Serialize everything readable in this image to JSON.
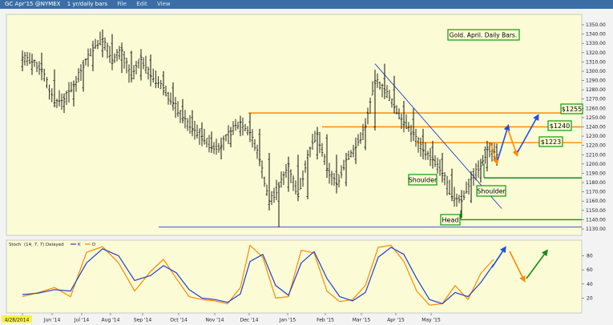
{
  "toolbar": {
    "symbol": "GC Apr'15 @NYMEX",
    "period": "1 yr/daily bars",
    "menu": [
      "File",
      "Edit",
      "View"
    ]
  },
  "stoch_panel": {
    "title": "Stoch",
    "params": "(14, 7, 7) Delayed",
    "legend": [
      "K",
      "D"
    ]
  },
  "chart_data": [
    {
      "type": "bar",
      "title": "Gold. April. Daily Bars.",
      "xlabel": "",
      "ylabel": "",
      "x_ticks": [
        "4/28/2014",
        "Jun '14",
        "Jul '14",
        "Aug '14",
        "Sep '14",
        "Oct '14",
        "Nov '14",
        "Dec '14",
        "Jan '15",
        "Feb '15",
        "Mar '15",
        "Apr '15",
        "May '15"
      ],
      "y_ticks": [
        1130,
        1140,
        1150,
        1160,
        1170,
        1180,
        1190,
        1200,
        1210,
        1220,
        1230,
        1240,
        1250,
        1260,
        1270,
        1280,
        1290,
        1300,
        1310,
        1320,
        1330,
        1340,
        1350
      ],
      "ylim": [
        1125,
        1360
      ],
      "grid": false,
      "series": [
        {
          "values": [
            [
              0,
              1305,
              1320,
              1300,
              1315
            ],
            [
              6,
              1302,
              1318,
              1296,
              1310
            ],
            [
              12,
              1308,
              1320,
              1298,
              1302
            ],
            [
              20,
              1290,
              1302,
              1262,
              1266
            ],
            [
              26,
              1262,
              1276,
              1255,
              1270
            ],
            [
              32,
              1270,
              1290,
              1262,
              1284
            ],
            [
              38,
              1282,
              1312,
              1278,
              1306
            ],
            [
              44,
              1306,
              1330,
              1300,
              1325
            ],
            [
              50,
              1322,
              1345,
              1315,
              1335
            ],
            [
              56,
              1330,
              1340,
              1308,
              1312
            ],
            [
              62,
              1312,
              1328,
              1298,
              1322
            ],
            [
              68,
              1320,
              1322,
              1288,
              1292
            ],
            [
              74,
              1295,
              1320,
              1290,
              1315
            ],
            [
              80,
              1312,
              1318,
              1290,
              1295
            ],
            [
              88,
              1295,
              1300,
              1275,
              1282
            ],
            [
              94,
              1282,
              1288,
              1260,
              1265
            ],
            [
              100,
              1262,
              1270,
              1245,
              1250
            ],
            [
              106,
              1250,
              1258,
              1232,
              1238
            ],
            [
              112,
              1238,
              1245,
              1225,
              1230
            ],
            [
              118,
              1228,
              1235,
              1212,
              1218
            ],
            [
              124,
              1218,
              1226,
              1205,
              1220
            ],
            [
              130,
              1222,
              1240,
              1218,
              1235
            ],
            [
              136,
              1235,
              1252,
              1230,
              1245
            ],
            [
              142,
              1245,
              1255,
              1230,
              1234
            ],
            [
              148,
              1232,
              1238,
              1200,
              1205
            ],
            [
              154,
              1205,
              1212,
              1150,
              1160
            ],
            [
              160,
              1160,
              1180,
              1132,
              1175
            ],
            [
              166,
              1175,
              1208,
              1170,
              1200
            ],
            [
              172,
              1198,
              1210,
              1160,
              1165
            ],
            [
              178,
              1165,
              1215,
              1162,
              1210
            ],
            [
              184,
              1210,
              1240,
              1205,
              1232
            ],
            [
              190,
              1228,
              1232,
              1185,
              1195
            ],
            [
              196,
              1192,
              1210,
              1170,
              1178
            ],
            [
              202,
              1180,
              1212,
              1176,
              1205
            ],
            [
              208,
              1205,
              1225,
              1200,
              1218
            ],
            [
              214,
              1218,
              1245,
              1215,
              1240
            ],
            [
              220,
              1240,
              1300,
              1236,
              1290
            ],
            [
              226,
              1292,
              1308,
              1270,
              1280
            ],
            [
              232,
              1280,
              1295,
              1255,
              1262
            ],
            [
              238,
              1262,
              1268,
              1240,
              1245
            ],
            [
              244,
              1248,
              1260,
              1225,
              1232
            ],
            [
              250,
              1230,
              1238,
              1205,
              1215
            ],
            [
              256,
              1218,
              1225,
              1195,
              1205
            ],
            [
              262,
              1205,
              1212,
              1180,
              1190
            ],
            [
              268,
              1188,
              1195,
              1160,
              1165
            ],
            [
              274,
              1165,
              1172,
              1142,
              1160
            ],
            [
              280,
              1160,
              1188,
              1158,
              1185
            ],
            [
              286,
              1185,
              1205,
              1180,
              1198
            ],
            [
              290,
              1196,
              1225,
              1192,
              1218
            ],
            [
              296,
              1218,
              1222,
              1198,
              1210
            ]
          ]
        }
      ],
      "annotations": {
        "price_labels": [
          "$1255",
          "$1240",
          "$1223"
        ],
        "pattern_labels": [
          "Shoulder",
          "Head",
          "Shoulder"
        ],
        "levels": [
          1255,
          1240,
          1223,
          1185,
          1140,
          1132
        ]
      }
    },
    {
      "type": "line",
      "title": "",
      "xlabel": "",
      "ylabel": "",
      "y_ticks": [
        20,
        40,
        60,
        80
      ],
      "ylim": [
        0,
        100
      ],
      "grid": false,
      "series": [
        {
          "name": "K",
          "color": "#ff8a00",
          "values": [
            [
              0,
              22
            ],
            [
              10,
              28
            ],
            [
              20,
              35
            ],
            [
              30,
              22
            ],
            [
              40,
              85
            ],
            [
              50,
              93
            ],
            [
              60,
              70
            ],
            [
              70,
              30
            ],
            [
              80,
              58
            ],
            [
              88,
              75
            ],
            [
              96,
              48
            ],
            [
              104,
              22
            ],
            [
              112,
              18
            ],
            [
              120,
              16
            ],
            [
              128,
              12
            ],
            [
              136,
              35
            ],
            [
              142,
              95
            ],
            [
              150,
              78
            ],
            [
              158,
              20
            ],
            [
              166,
              22
            ],
            [
              174,
              88
            ],
            [
              182,
              84
            ],
            [
              190,
              30
            ],
            [
              198,
              15
            ],
            [
              206,
              18
            ],
            [
              214,
              38
            ],
            [
              222,
              92
            ],
            [
              230,
              95
            ],
            [
              238,
              72
            ],
            [
              246,
              30
            ],
            [
              254,
              10
            ],
            [
              262,
              12
            ],
            [
              270,
              38
            ],
            [
              278,
              18
            ],
            [
              286,
              55
            ],
            [
              294,
              75
            ]
          ]
        },
        {
          "name": "D",
          "color": "#2040c8",
          "values": [
            [
              0,
              25
            ],
            [
              10,
              27
            ],
            [
              20,
              32
            ],
            [
              30,
              30
            ],
            [
              40,
              70
            ],
            [
              50,
              90
            ],
            [
              60,
              80
            ],
            [
              70,
              45
            ],
            [
              80,
              52
            ],
            [
              88,
              66
            ],
            [
              96,
              56
            ],
            [
              104,
              32
            ],
            [
              112,
              20
            ],
            [
              120,
              18
            ],
            [
              128,
              14
            ],
            [
              136,
              26
            ],
            [
              142,
              72
            ],
            [
              150,
              82
            ],
            [
              158,
              38
            ],
            [
              166,
              24
            ],
            [
              174,
              70
            ],
            [
              182,
              86
            ],
            [
              190,
              48
            ],
            [
              198,
              22
            ],
            [
              206,
              16
            ],
            [
              214,
              28
            ],
            [
              222,
              78
            ],
            [
              230,
              92
            ],
            [
              238,
              82
            ],
            [
              246,
              48
            ],
            [
              254,
              18
            ],
            [
              262,
              12
            ],
            [
              270,
              28
            ],
            [
              278,
              22
            ],
            [
              286,
              42
            ],
            [
              294,
              68
            ]
          ]
        }
      ]
    }
  ]
}
